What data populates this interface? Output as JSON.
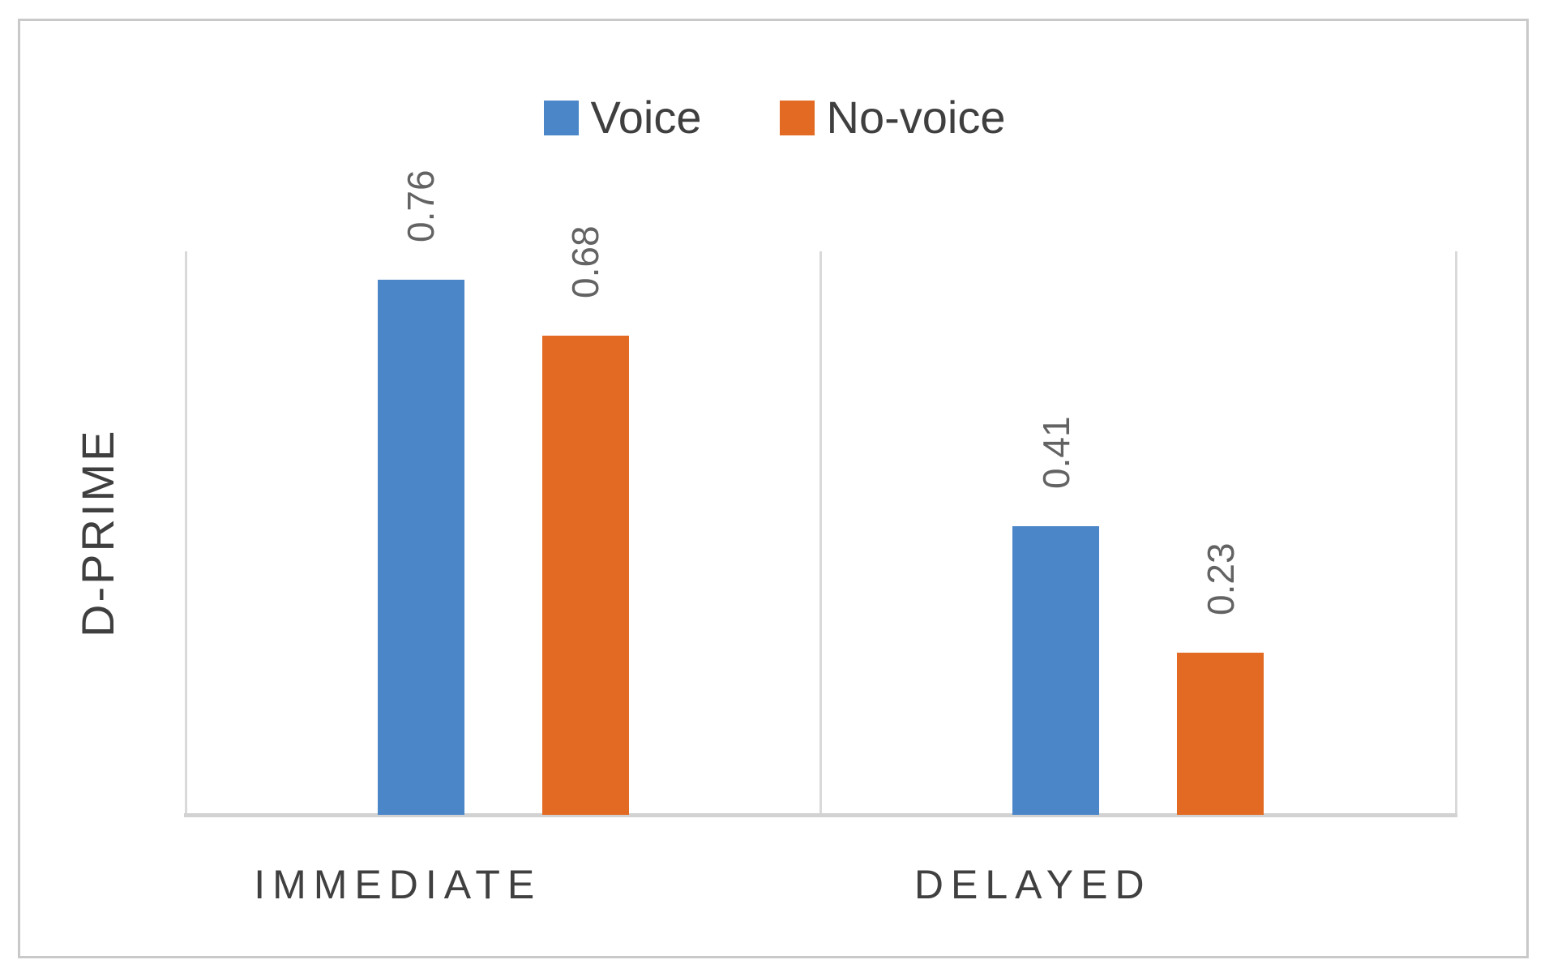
{
  "chart_data": {
    "type": "bar",
    "title": "",
    "categories": [
      "IMMEDIATE",
      "DELAYED"
    ],
    "series": [
      {
        "name": "Voice",
        "color": "#4a86c8",
        "values": [
          0.76,
          0.41
        ]
      },
      {
        "name": "No-voice",
        "color": "#e26a22",
        "values": [
          0.68,
          0.23
        ]
      }
    ],
    "xlabel": "",
    "ylabel": "D-PRIME",
    "ylim": [
      0,
      0.8
    ],
    "y_axis_ticks_visible": false,
    "grid": "vertical category separators",
    "legend_position": "top-center",
    "data_labels": {
      "shown": true,
      "rotation_degrees": -90,
      "format": "0.00",
      "values": [
        "0.76",
        "0.68",
        "0.41",
        "0.23"
      ]
    }
  }
}
